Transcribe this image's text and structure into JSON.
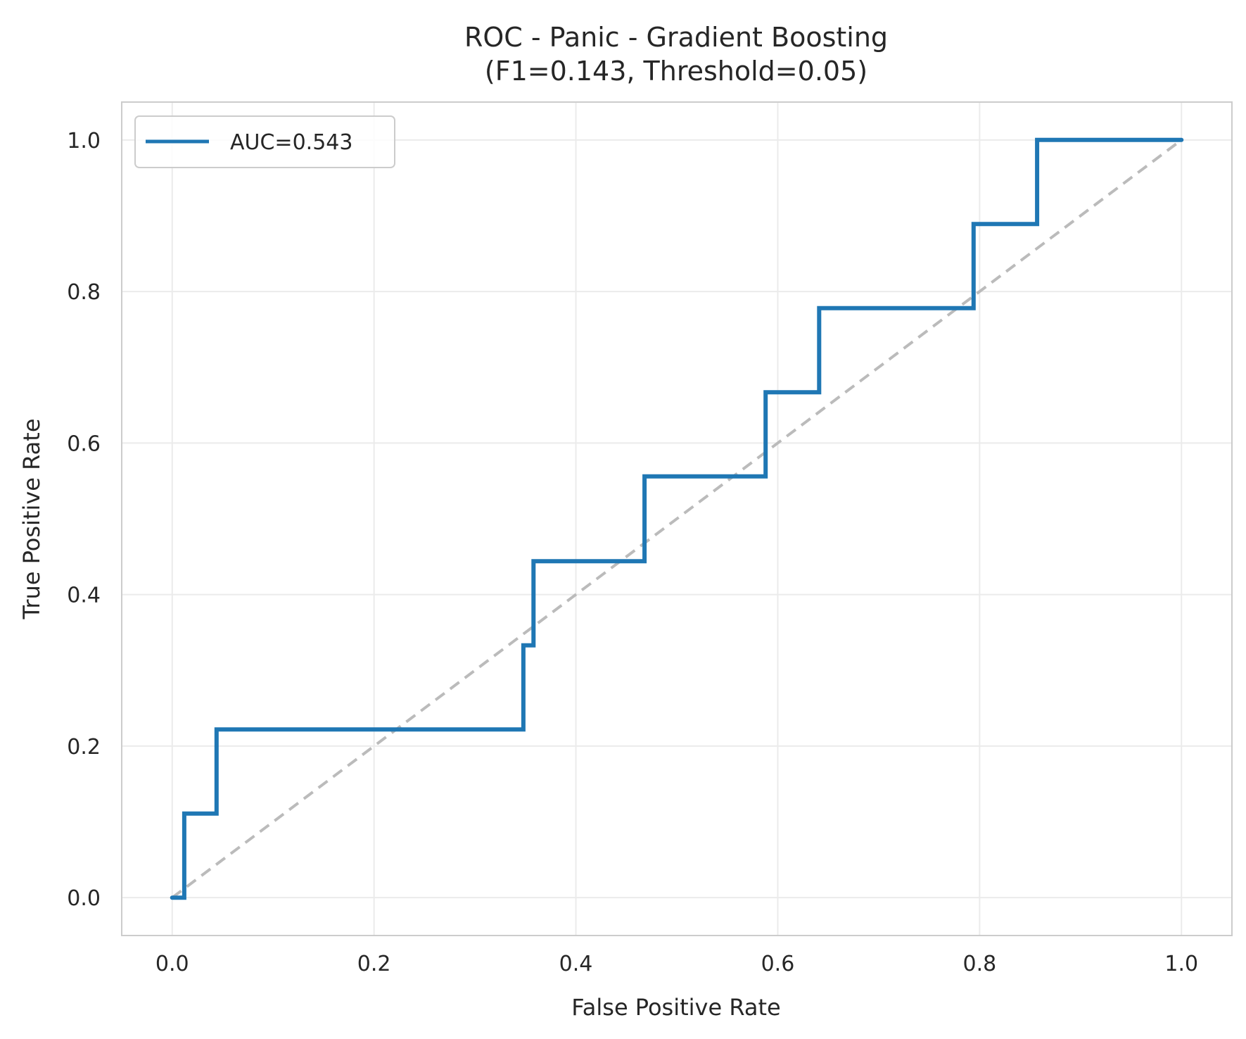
{
  "chart_data": {
    "type": "line",
    "title": "ROC - Panic - Gradient Boosting",
    "subtitle": "(F1=0.143, Threshold=0.05)",
    "xlabel": "False Positive Rate",
    "ylabel": "True Positive Rate",
    "xlim": [
      -0.05,
      1.05
    ],
    "ylim": [
      -0.05,
      1.05
    ],
    "x_ticks": [
      "0.0",
      "0.2",
      "0.4",
      "0.6",
      "0.8",
      "1.0"
    ],
    "y_ticks": [
      "0.0",
      "0.2",
      "0.4",
      "0.6",
      "0.8",
      "1.0"
    ],
    "grid": true,
    "legend_position": "top-left",
    "series": [
      {
        "name": "AUC=0.543",
        "color": "#1f77b4",
        "style": "solid",
        "x": [
          0.0,
          0.012,
          0.012,
          0.044,
          0.044,
          0.348,
          0.348,
          0.358,
          0.358,
          0.468,
          0.468,
          0.588,
          0.588,
          0.641,
          0.641,
          0.794,
          0.794,
          0.857,
          0.857,
          1.0
        ],
        "y": [
          0.0,
          0.0,
          0.111,
          0.111,
          0.222,
          0.222,
          0.333,
          0.333,
          0.444,
          0.444,
          0.556,
          0.556,
          0.667,
          0.667,
          0.778,
          0.778,
          0.889,
          0.889,
          1.0,
          1.0
        ]
      },
      {
        "color": "#bbbbbb",
        "style": "dashed",
        "x": [
          0.0,
          1.0
        ],
        "y": [
          0.0,
          1.0
        ]
      }
    ]
  }
}
